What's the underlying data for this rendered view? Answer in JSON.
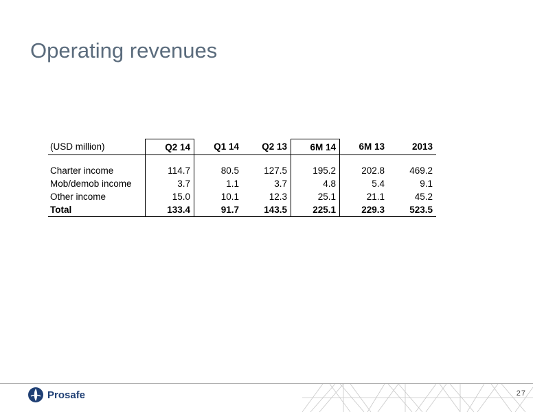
{
  "title": "Operating revenues",
  "table": {
    "unit_label": "(USD million)",
    "columns": [
      "Q2 14",
      "Q1 14",
      "Q2 13",
      "6M 14",
      "6M 13",
      "2013"
    ],
    "rows": [
      {
        "label": "Charter income",
        "values": [
          "114.7",
          "80.5",
          "127.5",
          "195.2",
          "202.8",
          "469.2"
        ]
      },
      {
        "label": "Mob/demob income",
        "values": [
          "3.7",
          "1.1",
          "3.7",
          "4.8",
          "5.4",
          "9.1"
        ]
      },
      {
        "label": "Other income",
        "values": [
          "15.0",
          "10.1",
          "12.3",
          "25.1",
          "21.1",
          "45.2"
        ]
      }
    ],
    "total": {
      "label": "Total",
      "values": [
        "133.4",
        "91.7",
        "143.5",
        "225.1",
        "229.3",
        "523.5"
      ]
    }
  },
  "footer": {
    "brand": "Prosafe",
    "page_number": "27",
    "logo_icon": "prosafe-logo-icon"
  },
  "colors": {
    "title": "#5a6b7c",
    "brand": "#1f3f74"
  }
}
